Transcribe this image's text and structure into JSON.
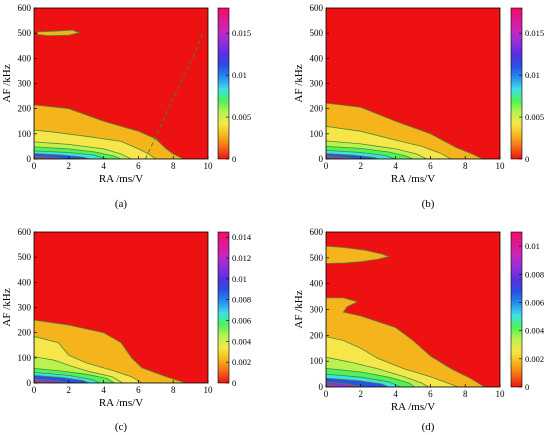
{
  "chart_data": [
    {
      "type": "heatmap",
      "panel_label": "(a)",
      "xlabel": "RA /ms/V",
      "ylabel": "AF /kHz",
      "xlim": [
        0,
        10
      ],
      "ylim": [
        0,
        600
      ],
      "xticks": [
        "0",
        "2",
        "4",
        "6",
        "8",
        "10"
      ],
      "yticks": [
        "0",
        "100",
        "200",
        "300",
        "400",
        "500",
        "600"
      ],
      "colorbar": {
        "min": 0,
        "max": 0.018,
        "ticks": [
          "0",
          "0.005",
          "0.01",
          "0.015"
        ],
        "tick_values": [
          0,
          0.005,
          0.01,
          0.015
        ]
      },
      "contours": [
        {
          "level": "orange",
          "color": "#f6b41c",
          "boundary": [
            [
              0,
              215
            ],
            [
              2,
              200
            ],
            [
              4,
              150
            ],
            [
              6,
              110
            ],
            [
              7,
              80
            ],
            [
              7.6,
              40
            ],
            [
              8,
              20
            ],
            [
              8.6,
              0
            ]
          ]
        },
        {
          "level": "yellow",
          "color": "#f6e64a",
          "boundary": [
            [
              0,
              115
            ],
            [
              1,
              108
            ],
            [
              3,
              90
            ],
            [
              5,
              70
            ],
            [
              6,
              40
            ],
            [
              6.6,
              20
            ],
            [
              7,
              0
            ]
          ]
        },
        {
          "level": "light-green",
          "color": "#bcf250",
          "boundary": [
            [
              0,
              68
            ],
            [
              2,
              58
            ],
            [
              4,
              40
            ],
            [
              5,
              20
            ],
            [
              5.6,
              0
            ]
          ]
        },
        {
          "level": "green",
          "color": "#4ef25a",
          "boundary": [
            [
              0,
              48
            ],
            [
              2,
              40
            ],
            [
              3.5,
              28
            ],
            [
              4.6,
              12
            ],
            [
              5,
              0
            ]
          ]
        },
        {
          "level": "cyan",
          "color": "#3ee0e8",
          "boundary": [
            [
              0,
              32
            ],
            [
              2,
              26
            ],
            [
              3.4,
              16
            ],
            [
              4.2,
              0
            ]
          ]
        },
        {
          "level": "blue",
          "color": "#2850e6",
          "boundary": [
            [
              0,
              22
            ],
            [
              1.6,
              16
            ],
            [
              2.8,
              8
            ],
            [
              3.2,
              0
            ]
          ]
        },
        {
          "level": "purple",
          "color": "#9030d8",
          "boundary": [
            [
              0,
              12
            ],
            [
              1,
              8
            ],
            [
              1.8,
              0
            ]
          ]
        },
        {
          "level": "magenta",
          "color": "#e01890",
          "boundary": [
            [
              0,
              6
            ],
            [
              0.8,
              0
            ]
          ]
        }
      ],
      "islands": [
        {
          "color": "#f6b41c",
          "boundary": [
            [
              0.2,
              505
            ],
            [
              1.2,
              508
            ],
            [
              2.2,
              512
            ],
            [
              2.6,
              502
            ],
            [
              2.0,
              492
            ],
            [
              0.8,
              490
            ],
            [
              0.2,
              495
            ]
          ]
        }
      ],
      "dashed_line": [
        [
          6.4,
          0
        ],
        [
          7.2,
          120
        ],
        [
          8.2,
          270
        ],
        [
          9.3,
          430
        ],
        [
          9.7,
          500
        ]
      ]
    },
    {
      "type": "heatmap",
      "panel_label": "(b)",
      "xlabel": "RA /ms/V",
      "ylabel": "AF /kHz",
      "xlim": [
        0,
        10
      ],
      "ylim": [
        0,
        600
      ],
      "xticks": [
        "0",
        "2",
        "4",
        "6",
        "8",
        "10"
      ],
      "yticks": [
        "0",
        "100",
        "200",
        "300",
        "400",
        "500",
        "600"
      ],
      "colorbar": {
        "min": 0,
        "max": 0.018,
        "ticks": [
          "0",
          "0.005",
          "0.01",
          "0.015"
        ],
        "tick_values": [
          0,
          0.005,
          0.01,
          0.015
        ]
      },
      "contours": [
        {
          "level": "orange",
          "color": "#f6b41c",
          "boundary": [
            [
              0,
              222
            ],
            [
              2,
              205
            ],
            [
              4,
              150
            ],
            [
              6,
              100
            ],
            [
              7.5,
              45
            ],
            [
              8.4,
              20
            ],
            [
              9,
              0
            ]
          ]
        },
        {
          "level": "yellow",
          "color": "#f6e64a",
          "boundary": [
            [
              0,
              130
            ],
            [
              2,
              110
            ],
            [
              4,
              75
            ],
            [
              5.5,
              50
            ],
            [
              6.5,
              25
            ],
            [
              7.2,
              0
            ]
          ]
        },
        {
          "level": "light-green",
          "color": "#bcf250",
          "boundary": [
            [
              0,
              72
            ],
            [
              2,
              60
            ],
            [
              4,
              40
            ],
            [
              5.2,
              20
            ],
            [
              5.8,
              0
            ]
          ]
        },
        {
          "level": "green",
          "color": "#4ef25a",
          "boundary": [
            [
              0,
              50
            ],
            [
              2,
              42
            ],
            [
              3.6,
              28
            ],
            [
              4.6,
              12
            ],
            [
              5,
              0
            ]
          ]
        },
        {
          "level": "cyan",
          "color": "#3ee0e8",
          "boundary": [
            [
              0,
              34
            ],
            [
              2,
              26
            ],
            [
              3.4,
              14
            ],
            [
              4,
              0
            ]
          ]
        },
        {
          "level": "blue",
          "color": "#2850e6",
          "boundary": [
            [
              0,
              22
            ],
            [
              1.6,
              15
            ],
            [
              2.8,
              6
            ],
            [
              3,
              0
            ]
          ]
        },
        {
          "level": "purple",
          "color": "#9030d8",
          "boundary": [
            [
              0,
              12
            ],
            [
              1,
              7
            ],
            [
              1.6,
              0
            ]
          ]
        },
        {
          "level": "magenta",
          "color": "#e01890",
          "boundary": [
            [
              0,
              6
            ],
            [
              0.7,
              0
            ]
          ]
        }
      ],
      "islands": []
    },
    {
      "type": "heatmap",
      "panel_label": "(c)",
      "xlabel": "RA /ms/V",
      "ylabel": "AF /kHz",
      "xlim": [
        0,
        10
      ],
      "ylim": [
        0,
        600
      ],
      "xticks": [
        "0",
        "2",
        "4",
        "6",
        "8",
        "10"
      ],
      "yticks": [
        "0",
        "100",
        "200",
        "300",
        "400",
        "500",
        "600"
      ],
      "colorbar": {
        "min": 0,
        "max": 0.0145,
        "ticks": [
          "0",
          "0.002",
          "0.004",
          "0.006",
          "0.008",
          "0.01",
          "0.012",
          "0.014"
        ],
        "tick_values": [
          0,
          0.002,
          0.004,
          0.006,
          0.008,
          0.01,
          0.012,
          0.014
        ]
      },
      "contours": [
        {
          "level": "orange",
          "color": "#f6b41c",
          "boundary": [
            [
              0,
              250
            ],
            [
              2,
              230
            ],
            [
              4,
              200
            ],
            [
              5,
              160
            ],
            [
              5.6,
              100
            ],
            [
              6.2,
              60
            ],
            [
              7.6,
              25
            ],
            [
              8.7,
              0
            ]
          ]
        },
        {
          "level": "yellow",
          "color": "#f6e64a",
          "boundary": [
            [
              0,
              185
            ],
            [
              1.4,
              160
            ],
            [
              2,
              110
            ],
            [
              3,
              80
            ],
            [
              4.5,
              50
            ],
            [
              5.6,
              25
            ],
            [
              6.2,
              0
            ]
          ]
        },
        {
          "level": "light-green",
          "color": "#bcf250",
          "boundary": [
            [
              0,
              105
            ],
            [
              1.2,
              90
            ],
            [
              2,
              70
            ],
            [
              3.2,
              45
            ],
            [
              4.5,
              25
            ],
            [
              5.1,
              0
            ]
          ]
        },
        {
          "level": "green",
          "color": "#4ef25a",
          "boundary": [
            [
              0,
              58
            ],
            [
              1.5,
              48
            ],
            [
              3,
              35
            ],
            [
              4.2,
              18
            ],
            [
              4.6,
              0
            ]
          ]
        },
        {
          "level": "cyan",
          "color": "#3ee0e8",
          "boundary": [
            [
              0,
              42
            ],
            [
              2,
              30
            ],
            [
              3.3,
              14
            ],
            [
              3.8,
              0
            ]
          ]
        },
        {
          "level": "blue",
          "color": "#2850e6",
          "boundary": [
            [
              0,
              30
            ],
            [
              1.6,
              22
            ],
            [
              2.8,
              10
            ],
            [
              3.2,
              0
            ]
          ]
        },
        {
          "level": "purple",
          "color": "#9030d8",
          "boundary": [
            [
              0,
              16
            ],
            [
              1.2,
              10
            ],
            [
              2,
              0
            ]
          ]
        },
        {
          "level": "magenta",
          "color": "#e01890",
          "boundary": [
            [
              0,
              8
            ],
            [
              0.8,
              0
            ]
          ]
        }
      ],
      "islands": []
    },
    {
      "type": "heatmap",
      "panel_label": "(d)",
      "xlabel": "RA /ms/V",
      "ylabel": "AF /kHz",
      "xlim": [
        0,
        10
      ],
      "ylim": [
        0,
        600
      ],
      "xticks": [
        "0",
        "2",
        "4",
        "6",
        "8",
        "10"
      ],
      "yticks": [
        "0",
        "100",
        "200",
        "300",
        "400",
        "500",
        "600"
      ],
      "colorbar": {
        "min": 0,
        "max": 0.011,
        "ticks": [
          "0",
          "0.002",
          "0.004",
          "0.006",
          "0.008",
          "0.01"
        ],
        "tick_values": [
          0,
          0.002,
          0.004,
          0.006,
          0.008,
          0.01
        ]
      },
      "contours": [
        {
          "level": "orange",
          "color": "#f6b41c",
          "boundary": [
            [
              0,
              345
            ],
            [
              1,
              345
            ],
            [
              1.8,
              330
            ],
            [
              1.2,
              310
            ],
            [
              1,
              290
            ],
            [
              2,
              275
            ],
            [
              4,
              230
            ],
            [
              5,
              180
            ],
            [
              6,
              120
            ],
            [
              7.2,
              70
            ],
            [
              8.4,
              30
            ],
            [
              9.1,
              0
            ]
          ]
        },
        {
          "level": "yellow",
          "color": "#f6e64a",
          "boundary": [
            [
              0,
              195
            ],
            [
              1,
              180
            ],
            [
              2,
              150
            ],
            [
              3,
              110
            ],
            [
              4.5,
              70
            ],
            [
              6,
              40
            ],
            [
              7,
              15
            ],
            [
              7.6,
              0
            ]
          ]
        },
        {
          "level": "light-green",
          "color": "#bcf250",
          "boundary": [
            [
              0,
              115
            ],
            [
              1.5,
              95
            ],
            [
              3,
              70
            ],
            [
              4.5,
              40
            ],
            [
              5.5,
              15
            ],
            [
              5.9,
              0
            ]
          ]
        },
        {
          "level": "green",
          "color": "#4ef25a",
          "boundary": [
            [
              0,
              72
            ],
            [
              2,
              58
            ],
            [
              3.6,
              38
            ],
            [
              4.8,
              15
            ],
            [
              5.1,
              0
            ]
          ]
        },
        {
          "level": "cyan",
          "color": "#3ee0e8",
          "boundary": [
            [
              0,
              50
            ],
            [
              2,
              38
            ],
            [
              3.6,
              20
            ],
            [
              4.3,
              0
            ]
          ]
        },
        {
          "level": "blue",
          "color": "#2850e6",
          "boundary": [
            [
              0,
              34
            ],
            [
              1.8,
              25
            ],
            [
              3.2,
              12
            ],
            [
              3.6,
              0
            ]
          ]
        },
        {
          "level": "purple",
          "color": "#9030d8",
          "boundary": [
            [
              0,
              20
            ],
            [
              1.2,
              12
            ],
            [
              2.2,
              0
            ]
          ]
        },
        {
          "level": "magenta",
          "color": "#e01890",
          "boundary": [
            [
              0,
              8
            ],
            [
              0.8,
              0
            ]
          ]
        }
      ],
      "islands": [
        {
          "color": "#f6b41c",
          "boundary": [
            [
              0,
              545
            ],
            [
              1,
              540
            ],
            [
              2.2,
              530
            ],
            [
              3.2,
              515
            ],
            [
              3.6,
              505
            ],
            [
              3,
              495
            ],
            [
              2,
              485
            ],
            [
              1,
              480
            ],
            [
              0,
              478
            ]
          ]
        }
      ]
    }
  ]
}
